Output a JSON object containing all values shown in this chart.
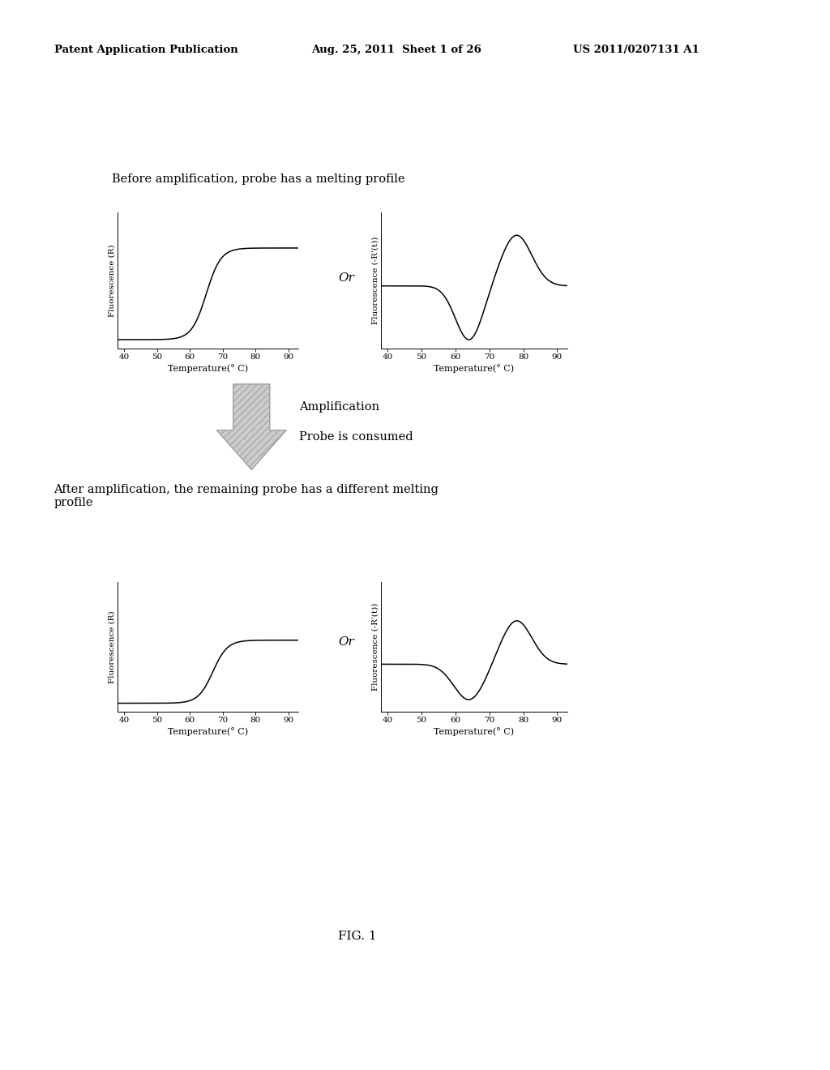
{
  "header_left": "Patent Application Publication",
  "header_mid": "Aug. 25, 2011  Sheet 1 of 26",
  "header_right": "US 2011/0207131 A1",
  "title_before": "Before amplification, probe has a melting profile",
  "title_after": "After amplification, the remaining probe has a different melting\nprofile",
  "label_amplification": "Amplification",
  "label_probe_consumed": "Probe is consumed",
  "label_or": "Or",
  "fig_label": "FIG. 1",
  "xlabel": "Temperature(° C)",
  "ylabel1": "Fluorescence (R)",
  "ylabel2": "Fluorescence (-R'(t))",
  "background_color": "#ffffff",
  "line_color": "#000000",
  "arrow_fill": "#cccccc",
  "arrow_stroke": "#999999"
}
